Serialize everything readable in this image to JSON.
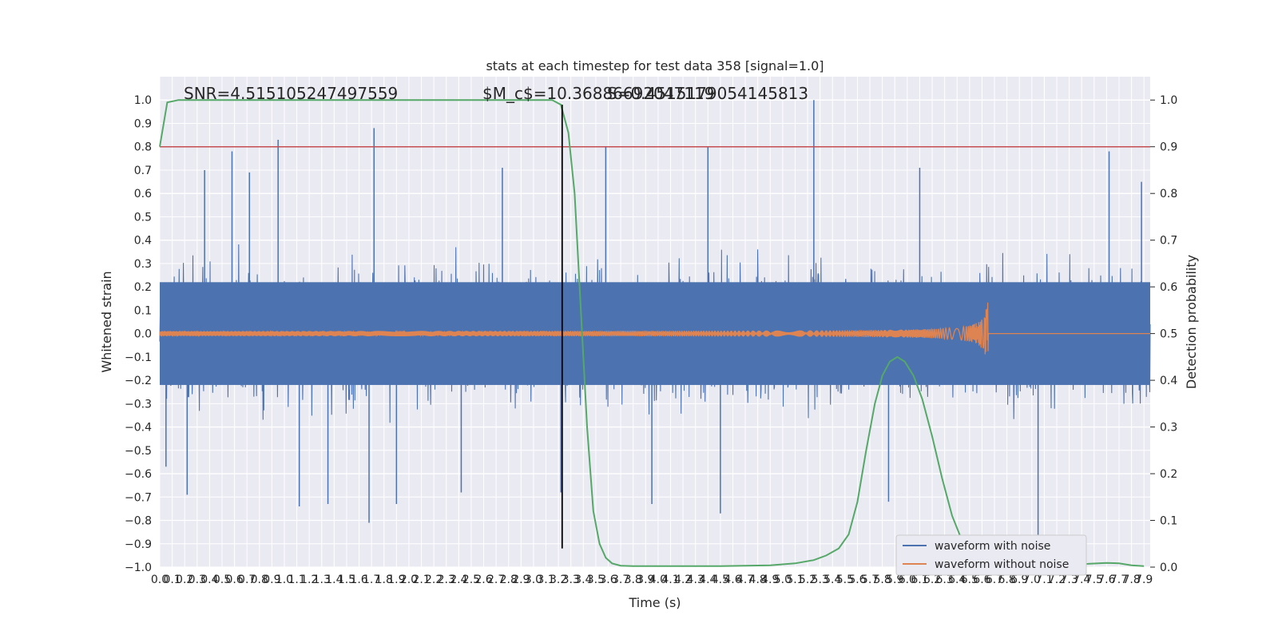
{
  "chart_data": {
    "type": "line",
    "title": "stats at each timestep for test data 358 [signal=1.0]",
    "xlabel": "Time (s)",
    "ylabel": "Whitened strain",
    "y2label": "Detection probability",
    "xlim": [
      0,
      7.95
    ],
    "ylim": [
      -1.0,
      1.1
    ],
    "y2lim": [
      0.0,
      1.05
    ],
    "grid": true,
    "x_ticks": [
      "0.0",
      "0.1",
      "0.2",
      "0.3",
      "0.4",
      "0.5",
      "0.6",
      "0.7",
      "0.8",
      "0.9",
      "1.0",
      "1.1",
      "1.2",
      "1.3",
      "1.4",
      "1.5",
      "1.6",
      "1.7",
      "1.8",
      "1.9",
      "2.0",
      "2.1",
      "2.2",
      "2.3",
      "2.4",
      "2.5",
      "2.6",
      "2.7",
      "2.8",
      "2.9",
      "3.0",
      "3.1",
      "3.2",
      "3.3",
      "3.4",
      "3.5",
      "3.6",
      "3.7",
      "3.8",
      "3.9",
      "4.0",
      "4.1",
      "4.2",
      "4.3",
      "4.4",
      "4.5",
      "4.6",
      "4.7",
      "4.8",
      "4.9",
      "5.0",
      "5.1",
      "5.2",
      "5.3",
      "5.4",
      "5.5",
      "5.6",
      "5.7",
      "5.8",
      "5.9",
      "6.0",
      "6.1",
      "6.2",
      "6.3",
      "6.4",
      "6.5",
      "6.6",
      "6.7",
      "6.8",
      "6.9",
      "7.0",
      "7.1",
      "7.2",
      "7.3",
      "7.4",
      "7.5",
      "7.6",
      "7.7",
      "7.8",
      "7.9"
    ],
    "y_ticks": [
      "−1.0",
      "−0.9",
      "−0.8",
      "−0.7",
      "−0.6",
      "−0.5",
      "−0.4",
      "−0.3",
      "−0.2",
      "−0.1",
      "0.0",
      "0.1",
      "0.2",
      "0.3",
      "0.4",
      "0.5",
      "0.6",
      "0.7",
      "0.8",
      "0.9",
      "1.0"
    ],
    "y2_ticks": [
      "0.0",
      "0.1",
      "0.2",
      "0.3",
      "0.4",
      "0.5",
      "0.6",
      "0.7",
      "0.8",
      "0.9",
      "1.0"
    ],
    "annotations": {
      "snr": "SNR=4.515105247497559",
      "mc": "$M_c$=10.36886692047119",
      "overlap": "S=0.4515179054145813"
    },
    "legend": {
      "position": "lower right",
      "entries": [
        "waveform with noise",
        "waveform without noise"
      ]
    },
    "colors": {
      "noise": "#4c72b0",
      "clean": "#dd8452",
      "probability": "#55a868",
      "threshold": "#c44e52",
      "marker": "#000000",
      "background": "#eaeaf2",
      "grid": "#ffffff"
    },
    "threshold_line": {
      "axis": "right",
      "value": 0.9
    },
    "marker_line": {
      "x": 3.23,
      "y_from": -0.92,
      "y_to": 0.98
    },
    "series": [
      {
        "name": "waveform with noise",
        "axis": "left",
        "kind": "noise",
        "spike_points": [
          {
            "x": 0.05,
            "y": -0.57
          },
          {
            "x": 0.22,
            "y": -0.69
          },
          {
            "x": 0.36,
            "y": 0.7
          },
          {
            "x": 0.58,
            "y": 0.78
          },
          {
            "x": 0.72,
            "y": 0.69
          },
          {
            "x": 0.95,
            "y": 0.83
          },
          {
            "x": 1.12,
            "y": -0.74
          },
          {
            "x": 1.35,
            "y": -0.73
          },
          {
            "x": 1.72,
            "y": 0.88
          },
          {
            "x": 1.68,
            "y": -0.81
          },
          {
            "x": 1.9,
            "y": -0.73
          },
          {
            "x": 2.42,
            "y": -0.68
          },
          {
            "x": 2.75,
            "y": 0.71
          },
          {
            "x": 3.22,
            "y": -0.68
          },
          {
            "x": 3.58,
            "y": 0.8
          },
          {
            "x": 3.95,
            "y": -0.73
          },
          {
            "x": 4.4,
            "y": 0.8
          },
          {
            "x": 4.5,
            "y": -0.77
          },
          {
            "x": 5.25,
            "y": 1.0
          },
          {
            "x": 5.85,
            "y": -0.72
          },
          {
            "x": 6.1,
            "y": 0.71
          },
          {
            "x": 7.05,
            "y": -0.87
          },
          {
            "x": 7.62,
            "y": 0.78
          },
          {
            "x": 7.88,
            "y": 0.65
          }
        ]
      },
      {
        "name": "waveform without noise",
        "axis": "left",
        "kind": "chirp",
        "merger_time": 6.65,
        "peak_amplitude": 0.18,
        "start_amplitude": 0.01
      },
      {
        "name": "detection probability",
        "axis": "right",
        "points": [
          {
            "x": 0.0,
            "y": 0.9
          },
          {
            "x": 0.06,
            "y": 0.995
          },
          {
            "x": 0.15,
            "y": 1.0
          },
          {
            "x": 3.15,
            "y": 1.0
          },
          {
            "x": 3.22,
            "y": 0.99
          },
          {
            "x": 3.28,
            "y": 0.93
          },
          {
            "x": 3.33,
            "y": 0.8
          },
          {
            "x": 3.38,
            "y": 0.55
          },
          {
            "x": 3.43,
            "y": 0.3
          },
          {
            "x": 3.48,
            "y": 0.12
          },
          {
            "x": 3.53,
            "y": 0.05
          },
          {
            "x": 3.58,
            "y": 0.02
          },
          {
            "x": 3.63,
            "y": 0.008
          },
          {
            "x": 3.7,
            "y": 0.003
          },
          {
            "x": 3.8,
            "y": 0.002
          },
          {
            "x": 4.5,
            "y": 0.002
          },
          {
            "x": 4.9,
            "y": 0.004
          },
          {
            "x": 5.1,
            "y": 0.008
          },
          {
            "x": 5.25,
            "y": 0.015
          },
          {
            "x": 5.35,
            "y": 0.025
          },
          {
            "x": 5.45,
            "y": 0.04
          },
          {
            "x": 5.53,
            "y": 0.07
          },
          {
            "x": 5.6,
            "y": 0.14
          },
          {
            "x": 5.67,
            "y": 0.25
          },
          {
            "x": 5.74,
            "y": 0.35
          },
          {
            "x": 5.8,
            "y": 0.41
          },
          {
            "x": 5.86,
            "y": 0.44
          },
          {
            "x": 5.92,
            "y": 0.45
          },
          {
            "x": 5.98,
            "y": 0.44
          },
          {
            "x": 6.05,
            "y": 0.41
          },
          {
            "x": 6.12,
            "y": 0.36
          },
          {
            "x": 6.2,
            "y": 0.28
          },
          {
            "x": 6.28,
            "y": 0.19
          },
          {
            "x": 6.36,
            "y": 0.11
          },
          {
            "x": 6.45,
            "y": 0.05
          },
          {
            "x": 6.55,
            "y": 0.025
          },
          {
            "x": 6.7,
            "y": 0.015
          },
          {
            "x": 6.9,
            "y": 0.01
          },
          {
            "x": 7.2,
            "y": 0.006
          },
          {
            "x": 7.45,
            "y": 0.007
          },
          {
            "x": 7.6,
            "y": 0.009
          },
          {
            "x": 7.7,
            "y": 0.008
          },
          {
            "x": 7.8,
            "y": 0.004
          },
          {
            "x": 7.9,
            "y": 0.002
          }
        ]
      }
    ]
  }
}
